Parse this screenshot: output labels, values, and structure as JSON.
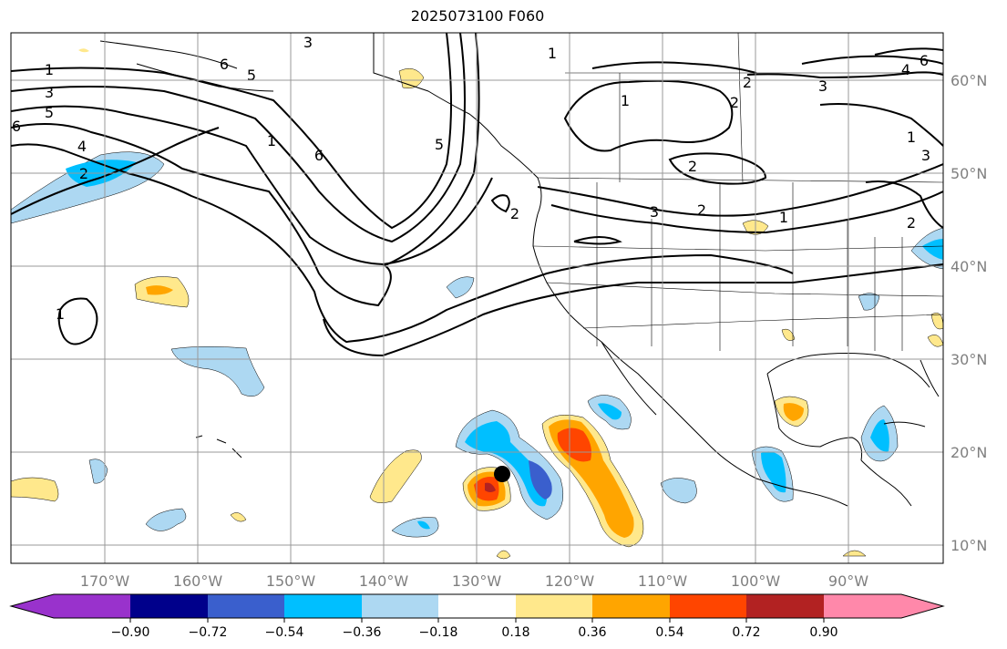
{
  "title": "2025073100 F060",
  "longitude_labels": [
    "170°W",
    "160°W",
    "150°W",
    "140°W",
    "130°W",
    "120°W",
    "110°W",
    "100°W",
    "90°W"
  ],
  "latitude_labels": [
    "10°N",
    "20°N",
    "30°N",
    "40°N",
    "50°N",
    "60°N"
  ],
  "colorbar": {
    "ticks": [
      "−0.90",
      "−0.72",
      "−0.54",
      "−0.36",
      "−0.18",
      "0.18",
      "0.36",
      "0.54",
      "0.72",
      "0.90"
    ],
    "colors": [
      "#9932cc",
      "#00008b",
      "#3a5fcd",
      "#00bfff",
      "#add8f2",
      "#ffffff",
      "#ffe88c",
      "#ffa500",
      "#ff4500",
      "#b22222",
      "#ff88aa"
    ]
  },
  "contour_labels": [
    "1",
    "3",
    "5",
    "6",
    "4",
    "2",
    "6",
    "3",
    "5",
    "1",
    "6",
    "5",
    "1",
    "2",
    "1",
    "2",
    "3",
    "2",
    "1",
    "4",
    "6",
    "3",
    "1",
    "2",
    "3",
    "2",
    "1",
    "2"
  ],
  "colors": {
    "lightblue": "#add8f2",
    "skyblue": "#00bfff",
    "blue": "#3a5fcd",
    "yellow": "#ffe88c",
    "orange": "#ffa500",
    "red": "#ff4500",
    "darkred": "#b22222"
  }
}
